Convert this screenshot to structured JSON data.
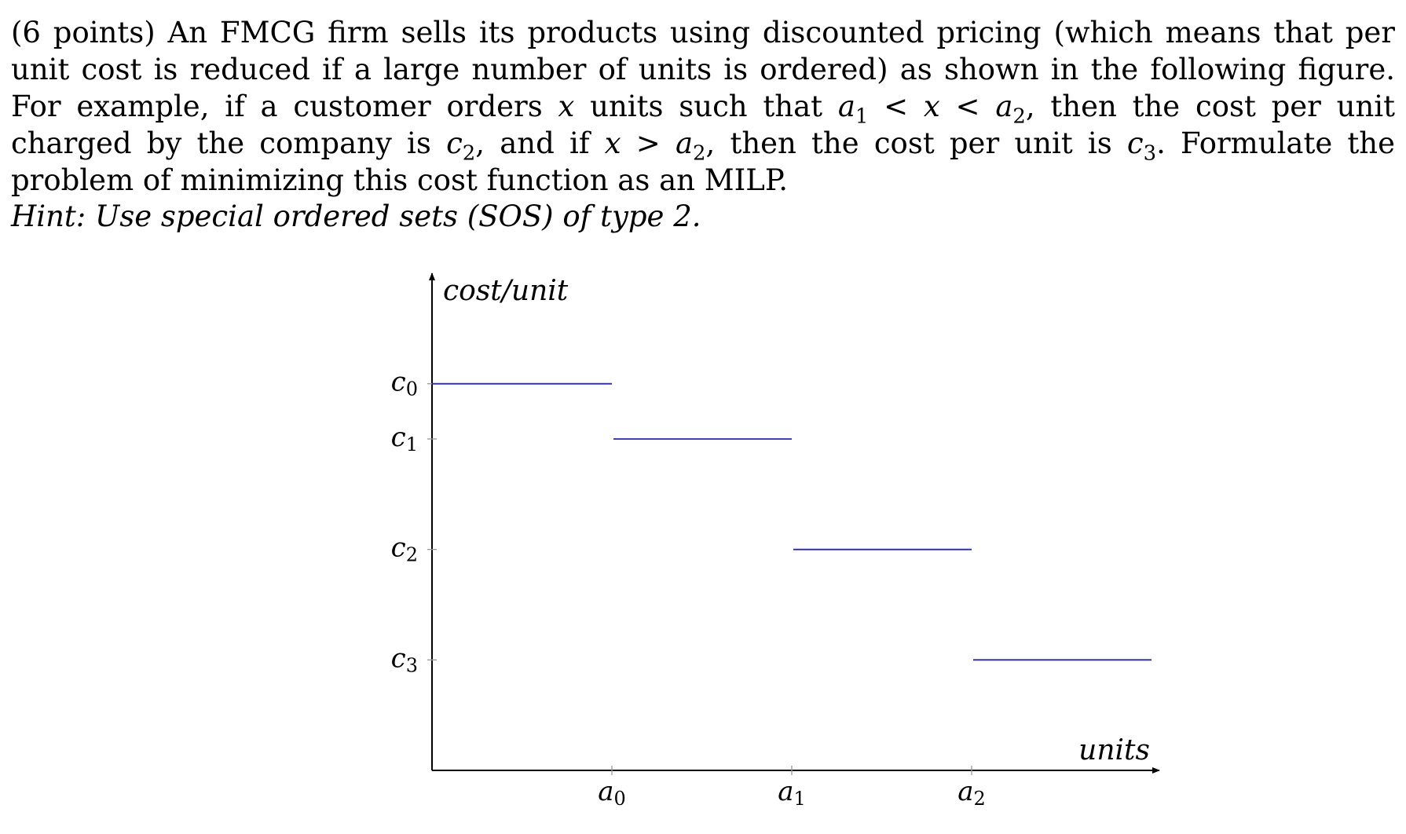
{
  "problem": {
    "points": "(6 points)",
    "s1": " An FMCG firm sells its products using discounted pricing (which means that per unit cost is reduced if a large number of units is ordered) as shown in the following figure. For example, if a customer orders ",
    "x": "x",
    "s2": " units such that ",
    "a": "a",
    "one": "1",
    "lt": " < ",
    "two": "2",
    "s3": ", then the cost per unit charged by the company is ",
    "c": "c",
    "s4": ", and if ",
    "gt": " > ",
    "s5": ", then the cost per unit is ",
    "three": "3",
    "s6": ". Formulate the problem of minimizing this cost function as an MILP."
  },
  "hint": "Hint: Use special ordered sets (SOS) of type 2.",
  "chart_data": {
    "type": "line",
    "title": "",
    "ylabel": "cost/unit",
    "xlabel": "units",
    "x_ticks": [
      {
        "symbol": "a",
        "sub": "0"
      },
      {
        "symbol": "a",
        "sub": "1"
      },
      {
        "symbol": "a",
        "sub": "2"
      }
    ],
    "y_ticks": [
      {
        "symbol": "c",
        "sub": "0",
        "value": 6.0
      },
      {
        "symbol": "c",
        "sub": "1",
        "value": 5.5
      },
      {
        "symbol": "c",
        "sub": "2",
        "value": 4.5
      },
      {
        "symbol": "c",
        "sub": "3",
        "value": 3.5
      }
    ],
    "segments": [
      {
        "x": [
          0,
          1
        ],
        "y": 6.0
      },
      {
        "x": [
          1,
          2
        ],
        "y": 5.5
      },
      {
        "x": [
          2,
          3
        ],
        "y": 4.5
      },
      {
        "x": [
          3,
          4
        ],
        "y": 3.5
      }
    ],
    "xlim": [
      0,
      4.0
    ],
    "ylim": [
      2.5,
      7.0
    ],
    "line_color": "#2222cc",
    "grid": false
  }
}
